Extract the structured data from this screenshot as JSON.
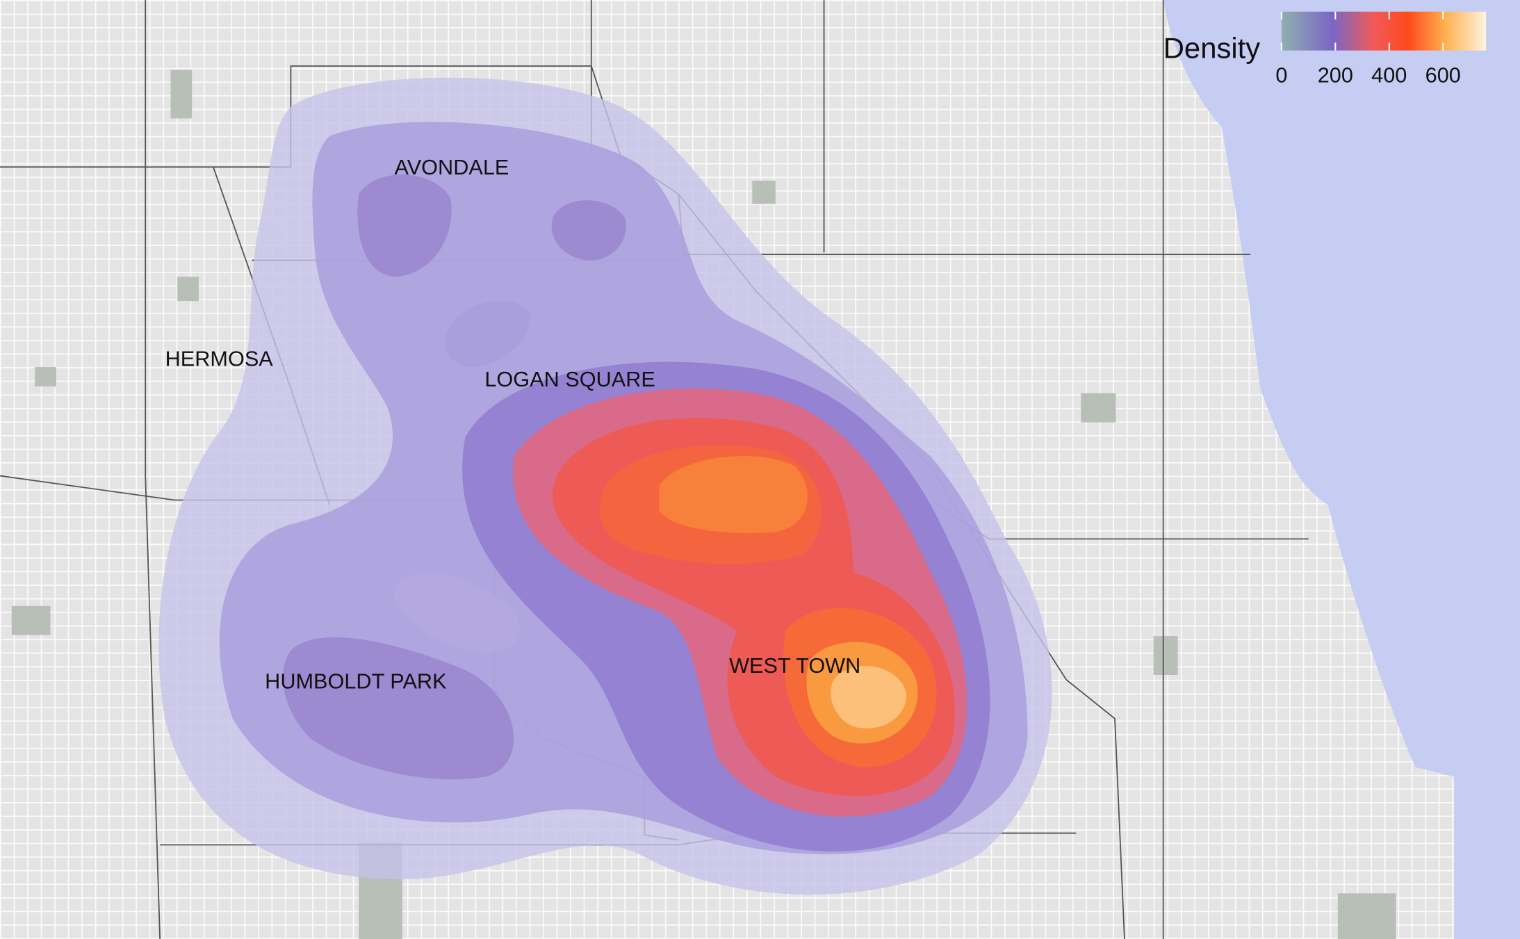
{
  "legend": {
    "title": "Density",
    "ticks": [
      0,
      200,
      400,
      600
    ],
    "limits": [
      0,
      760
    ]
  },
  "neighborhoods": [
    "AVONDALE",
    "HERMOSA",
    "LOGAN SQUARE",
    "WEST TOWN",
    "HUMBOLDT PARK"
  ]
}
